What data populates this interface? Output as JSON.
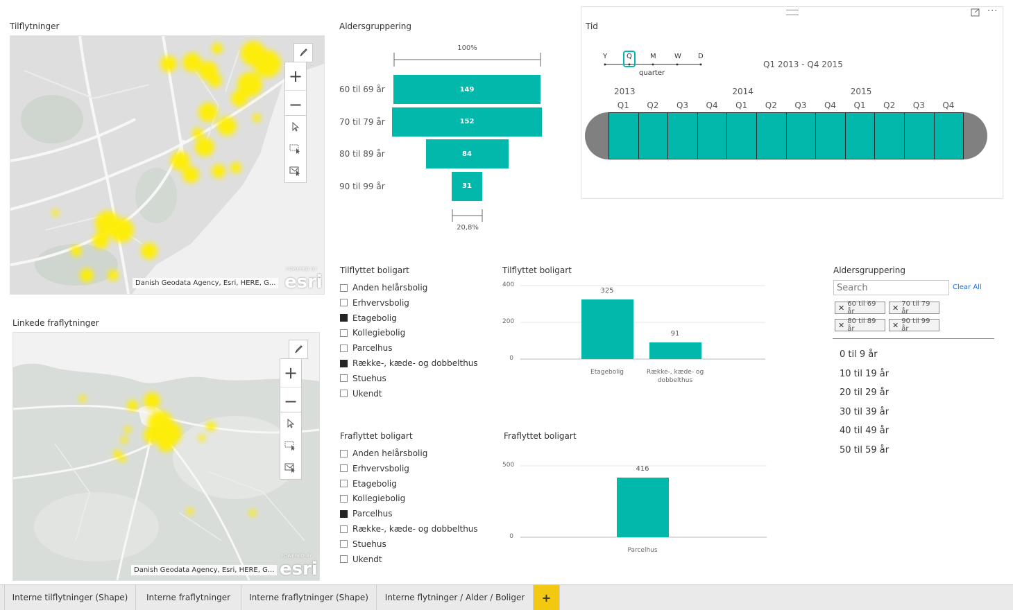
{
  "map1": {
    "title": "Tilflytninger",
    "attribution": "Danish Geodata Agency, Esri, HERE, G...",
    "zoom_in": "+",
    "zoom_out": "−",
    "logo_text": "esri",
    "logo_small": "POWERED BY"
  },
  "map2": {
    "title": "Linkede fraflytninger",
    "attribution": "Danish Geodata Agency, Esri, HERE, G...",
    "zoom_in": "+",
    "zoom_out": "−",
    "logo_text": "esri",
    "logo_small": "POWERED BY"
  },
  "funnel": {
    "title": "Aldersgruppering",
    "top_percent": "100%",
    "bottom_percent": "20,8%",
    "rows": [
      {
        "label": "60 til 69 år",
        "value": 149
      },
      {
        "label": "70 til 79 år",
        "value": 152
      },
      {
        "label": "80 til 89 år",
        "value": 84
      },
      {
        "label": "90 til 99 år",
        "value": 31
      }
    ]
  },
  "timeline": {
    "title": "Tid",
    "granularity": [
      "Y",
      "Q",
      "M",
      "W",
      "D"
    ],
    "selected_granularity": "Q",
    "granularity_caption": "quarter",
    "range": "Q1 2013 - Q4 2015",
    "years": [
      "2013",
      "2014",
      "2015"
    ],
    "quarters": [
      "Q1",
      "Q2",
      "Q3",
      "Q4",
      "Q1",
      "Q2",
      "Q3",
      "Q4",
      "Q1",
      "Q2",
      "Q3",
      "Q4"
    ]
  },
  "slicer_in": {
    "title": "Tilflyttet boligart",
    "items": [
      {
        "label": "Anden helårsbolig",
        "checked": false
      },
      {
        "label": "Erhvervsbolig",
        "checked": false
      },
      {
        "label": "Etagebolig",
        "checked": true
      },
      {
        "label": "Kollegiebolig",
        "checked": false
      },
      {
        "label": "Parcelhus",
        "checked": false
      },
      {
        "label": "Række-, kæde- og dobbelthus",
        "checked": true
      },
      {
        "label": "Stuehus",
        "checked": false
      },
      {
        "label": "Ukendt",
        "checked": false
      }
    ]
  },
  "slicer_out": {
    "title": "Fraflyttet boligart",
    "items": [
      {
        "label": "Anden helårsbolig",
        "checked": false
      },
      {
        "label": "Erhvervsbolig",
        "checked": false
      },
      {
        "label": "Etagebolig",
        "checked": false
      },
      {
        "label": "Kollegiebolig",
        "checked": false
      },
      {
        "label": "Parcelhus",
        "checked": true
      },
      {
        "label": "Række-, kæde- og dobbelthus",
        "checked": false
      },
      {
        "label": "Stuehus",
        "checked": false
      },
      {
        "label": "Ukendt",
        "checked": false
      }
    ]
  },
  "chart_data": [
    {
      "type": "bar",
      "title": "Tilflyttet boligart",
      "categories": [
        "Etagebolig",
        "Række-, kæde- og dobbelthus"
      ],
      "category_lines": [
        [
          "Etagebolig"
        ],
        [
          "Række-, kæde- og",
          "dobbelthus"
        ]
      ],
      "values": [
        325,
        91
      ],
      "yticks": [
        0,
        200,
        400
      ],
      "ylim": [
        0,
        400
      ],
      "grid": true,
      "color": "#01b8aa"
    },
    {
      "type": "bar",
      "title": "Fraflyttet boligart",
      "categories": [
        "Parcelhus"
      ],
      "category_lines": [
        [
          "Parcelhus"
        ]
      ],
      "values": [
        416
      ],
      "yticks": [
        0,
        500
      ],
      "ylim": [
        0,
        500
      ],
      "grid": true,
      "color": "#01b8aa"
    }
  ],
  "age_slicer": {
    "title": "Aldersgruppering",
    "search_placeholder": "Search",
    "clear_all": "Clear All",
    "selected": [
      "60 til 69 år",
      "70 til 79 år",
      "80 til 89 år",
      "90 til 99 år"
    ],
    "remove_symbol": "✕",
    "options": [
      "0 til 9 år",
      "10 til 19 år",
      "20 til 29 år",
      "30 til 39 år",
      "40 til 49 år",
      "50 til 59 år"
    ]
  },
  "tabs": [
    "Interne tilflytninger (Shape)",
    "Interne fraflytninger",
    "Interne fraflytninger (Shape)",
    "Interne flytninger / Alder / Boliger"
  ],
  "add_tab": "+",
  "colors": {
    "accent": "#01b8aa",
    "heat": "#ffee00",
    "tab_add": "#f2c811"
  }
}
